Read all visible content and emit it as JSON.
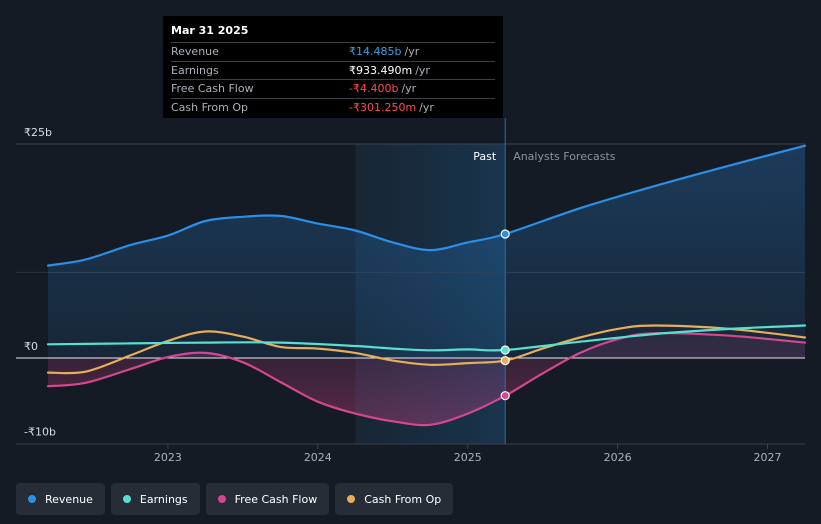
{
  "tooltip": {
    "date": "Mar 31 2025",
    "rows": [
      {
        "label": "Revenue",
        "value": "₹14.485b",
        "unit": "/yr",
        "color": "#3d9de6"
      },
      {
        "label": "Earnings",
        "value": "₹933.490m",
        "unit": "/yr",
        "color": "#ffffff"
      },
      {
        "label": "Free Cash Flow",
        "value": "-₹4.400b",
        "unit": "/yr",
        "color": "#ff4d4d"
      },
      {
        "label": "Cash From Op",
        "value": "-₹301.250m",
        "unit": "/yr",
        "color": "#ff4d4d"
      }
    ]
  },
  "regions": {
    "past": "Past",
    "forecast": "Analysts Forecasts"
  },
  "legend": [
    {
      "label": "Revenue",
      "color": "#2d8ee6"
    },
    {
      "label": "Earnings",
      "color": "#57e0cf"
    },
    {
      "label": "Free Cash Flow",
      "color": "#d6468f"
    },
    {
      "label": "Cash From Op",
      "color": "#e8ad5a"
    }
  ],
  "chart_data": {
    "type": "line",
    "y_tick_labels": [
      "₹25b",
      "₹0",
      "-₹10b"
    ],
    "ylim": [
      -10,
      25
    ],
    "xlim": [
      2022.2,
      2027.25
    ],
    "x_tick_labels": [
      "2023",
      "2024",
      "2025",
      "2026",
      "2027"
    ],
    "x_ticks": [
      2023,
      2024,
      2025,
      2026,
      2027
    ],
    "highlight_start": 2024.25,
    "divider": 2025.25,
    "series": [
      {
        "name": "Revenue",
        "color": "#2d8ee6",
        "fill": true,
        "values": [
          [
            2022.2,
            10.8
          ],
          [
            2022.45,
            11.5
          ],
          [
            2022.75,
            13.2
          ],
          [
            2023.0,
            14.3
          ],
          [
            2023.25,
            16.0
          ],
          [
            2023.5,
            16.5
          ],
          [
            2023.75,
            16.6
          ],
          [
            2024.0,
            15.7
          ],
          [
            2024.25,
            14.9
          ],
          [
            2024.5,
            13.5
          ],
          [
            2024.75,
            12.6
          ],
          [
            2025.0,
            13.5
          ],
          [
            2025.25,
            14.485
          ],
          [
            2025.75,
            17.5
          ],
          [
            2026.25,
            20.1
          ],
          [
            2026.75,
            22.5
          ],
          [
            2027.25,
            24.8
          ]
        ],
        "endpoint": [
          2025.25,
          14.485
        ]
      },
      {
        "name": "Earnings",
        "color": "#57e0cf",
        "fill": false,
        "values": [
          [
            2022.2,
            1.6
          ],
          [
            2022.75,
            1.7
          ],
          [
            2023.25,
            1.8
          ],
          [
            2023.75,
            1.8
          ],
          [
            2024.25,
            1.4
          ],
          [
            2024.5,
            1.1
          ],
          [
            2024.75,
            0.9
          ],
          [
            2025.0,
            1.0
          ],
          [
            2025.25,
            0.93349
          ],
          [
            2025.75,
            1.9
          ],
          [
            2026.25,
            2.8
          ],
          [
            2026.75,
            3.4
          ],
          [
            2027.25,
            3.8
          ]
        ],
        "endpoint": [
          2025.25,
          0.93349
        ]
      },
      {
        "name": "Free Cash Flow",
        "color": "#d6468f",
        "fill": true,
        "values": [
          [
            2022.2,
            -3.3
          ],
          [
            2022.45,
            -2.9
          ],
          [
            2022.75,
            -1.3
          ],
          [
            2023.0,
            0.1
          ],
          [
            2023.25,
            0.6
          ],
          [
            2023.5,
            -0.5
          ],
          [
            2023.75,
            -2.8
          ],
          [
            2024.0,
            -5.1
          ],
          [
            2024.25,
            -6.5
          ],
          [
            2024.5,
            -7.4
          ],
          [
            2024.75,
            -7.8
          ],
          [
            2025.0,
            -6.5
          ],
          [
            2025.25,
            -4.4
          ],
          [
            2025.5,
            -1.8
          ],
          [
            2025.75,
            0.6
          ],
          [
            2026.0,
            2.2
          ],
          [
            2026.25,
            2.9
          ],
          [
            2026.75,
            2.6
          ],
          [
            2027.25,
            1.8
          ]
        ],
        "endpoint": [
          2025.25,
          -4.4
        ]
      },
      {
        "name": "Cash From Op",
        "color": "#e8ad5a",
        "fill": false,
        "values": [
          [
            2022.2,
            -1.7
          ],
          [
            2022.45,
            -1.6
          ],
          [
            2022.75,
            0.3
          ],
          [
            2023.0,
            2.0
          ],
          [
            2023.25,
            3.1
          ],
          [
            2023.5,
            2.5
          ],
          [
            2023.75,
            1.3
          ],
          [
            2024.0,
            1.1
          ],
          [
            2024.25,
            0.6
          ],
          [
            2024.5,
            -0.3
          ],
          [
            2024.75,
            -0.8
          ],
          [
            2025.0,
            -0.6
          ],
          [
            2025.25,
            -0.30125
          ],
          [
            2025.5,
            1.1
          ],
          [
            2025.75,
            2.4
          ],
          [
            2026.0,
            3.4
          ],
          [
            2026.25,
            3.8
          ],
          [
            2026.75,
            3.4
          ],
          [
            2027.25,
            2.4
          ]
        ],
        "endpoint": [
          2025.25,
          -0.30125
        ]
      }
    ]
  }
}
